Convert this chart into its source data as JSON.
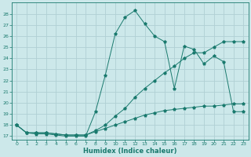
{
  "xlabel": "Humidex (Indice chaleur)",
  "bg_color": "#cce8ea",
  "grid_color": "#b0d0d4",
  "line_color": "#1a7a6e",
  "xlim": [
    -0.5,
    23.5
  ],
  "ylim": [
    16.7,
    29.0
  ],
  "yticks": [
    17,
    18,
    19,
    20,
    21,
    22,
    23,
    24,
    25,
    26,
    27,
    28
  ],
  "xticks": [
    0,
    1,
    2,
    3,
    4,
    5,
    6,
    7,
    8,
    9,
    10,
    11,
    12,
    13,
    14,
    15,
    16,
    17,
    18,
    19,
    20,
    21,
    22,
    23
  ],
  "line1_x": [
    0,
    1,
    2,
    3,
    4,
    5,
    6,
    7,
    8,
    9,
    10,
    11,
    12,
    13,
    14,
    15,
    16,
    17,
    18,
    19,
    20,
    21,
    22,
    23
  ],
  "line1_y": [
    18,
    17.3,
    17.3,
    17.3,
    17.2,
    17.1,
    17.1,
    17.1,
    17.4,
    17.7,
    18.0,
    18.3,
    18.6,
    18.9,
    19.1,
    19.3,
    19.4,
    19.5,
    19.6,
    19.7,
    19.7,
    19.8,
    19.9,
    19.9
  ],
  "line2_x": [
    0,
    1,
    2,
    3,
    4,
    5,
    6,
    7,
    8,
    9,
    10,
    11,
    12,
    13,
    14,
    15,
    16,
    17,
    18,
    19,
    20,
    21,
    22,
    23
  ],
  "line2_y": [
    18,
    17.3,
    17.3,
    17.3,
    17.2,
    17.1,
    17.1,
    17.1,
    17.5,
    18.0,
    18.8,
    19.5,
    20.5,
    21.3,
    22.0,
    22.7,
    23.3,
    24.0,
    24.5,
    24.5,
    25.0,
    25.5,
    25.5,
    25.5
  ],
  "line3_x": [
    0,
    1,
    2,
    3,
    4,
    5,
    6,
    7,
    8,
    9,
    10,
    11,
    12,
    13,
    14,
    15,
    16,
    17,
    18,
    19,
    20,
    21,
    22,
    23
  ],
  "line3_y": [
    18,
    17.3,
    17.2,
    17.2,
    17.1,
    17.0,
    17.0,
    17.0,
    19.2,
    22.5,
    26.2,
    27.7,
    28.3,
    27.1,
    26.0,
    25.5,
    21.3,
    25.1,
    24.8,
    23.5,
    24.2,
    23.7,
    19.2,
    19.2
  ]
}
